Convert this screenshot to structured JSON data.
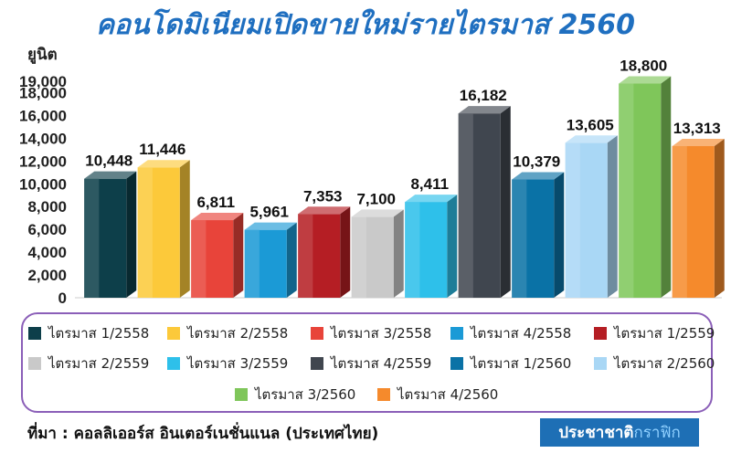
{
  "title": "คอนโดมิเนียมเปิดขายใหม่รายไตรมาส 2560",
  "unit_label": "ยูนิต",
  "source": "ที่มา : คอลลิเออร์ส อินเตอร์เนชั่นแนล (ประเทศไทย)",
  "brand": {
    "part1": "ประชาชาติ",
    "part2": "กราฟิก"
  },
  "chart_data": {
    "type": "bar",
    "title": "คอนโดมิเนียมเปิดขายใหม่รายไตรมาส 2560",
    "ylabel": "ยูนิต",
    "ylim": [
      0,
      19000
    ],
    "yticks": [
      0,
      2000,
      4000,
      6000,
      8000,
      10000,
      12000,
      14000,
      16000,
      18000,
      19000
    ],
    "ytick_labels": [
      "0",
      "2,000",
      "4,000",
      "6,000",
      "8,000",
      "10,000",
      "12,000",
      "14,000",
      "16,000",
      "18,000",
      "19,000"
    ],
    "categories": [
      "ไตรมาส 1/2558",
      "ไตรมาส 2/2558",
      "ไตรมาส 3/2558",
      "ไตรมาส 4/2558",
      "ไตรมาส 1/2559",
      "ไตรมาส 2/2559",
      "ไตรมาส 3/2559",
      "ไตรมาส 4/2559",
      "ไตรมาส 1/2560",
      "ไตรมาส 2/2560",
      "ไตรมาส 3/2560",
      "ไตรมาส 4/2560"
    ],
    "values": [
      10448,
      11446,
      6811,
      5961,
      7353,
      7100,
      8411,
      16182,
      10379,
      13605,
      18800,
      13313
    ],
    "value_labels": [
      "10,448",
      "11,446",
      "6,811",
      "5,961",
      "7,353",
      "7,100",
      "8,411",
      "16,182",
      "10,379",
      "13,605",
      "18,800",
      "13,313"
    ],
    "colors": [
      "#0d3f4a",
      "#fcc93a",
      "#e8443a",
      "#1b9ad6",
      "#b51e24",
      "#c9c9c9",
      "#2ec0ea",
      "#40464f",
      "#0a72a6",
      "#a9d7f5",
      "#7fc65a",
      "#f58a2c"
    ],
    "legend_position": "bottom",
    "grid": false
  }
}
